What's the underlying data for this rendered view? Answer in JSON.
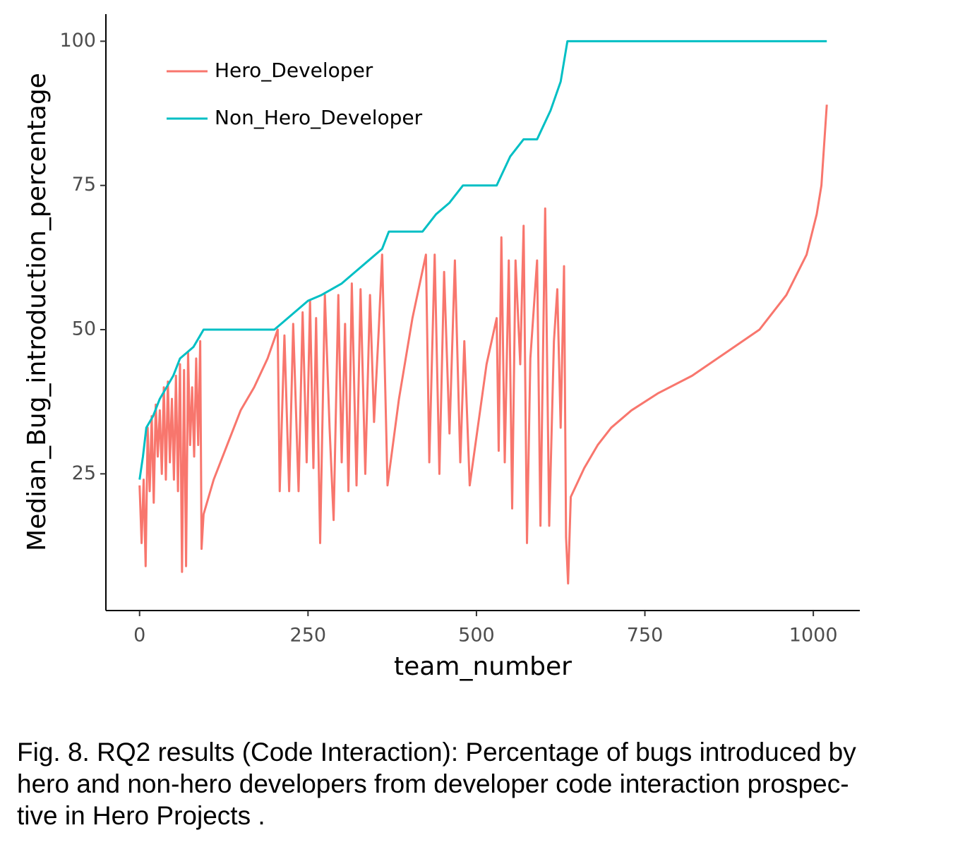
{
  "chart_data": {
    "type": "line",
    "x_label": "team_number",
    "y_label": "Median_Bug_introduction_percentage",
    "xlim": [
      -50,
      1069
    ],
    "ylim": [
      1.3,
      104.7
    ],
    "xticks": [
      0,
      250,
      500,
      750,
      1000
    ],
    "yticks": [
      25,
      50,
      75,
      100
    ],
    "legend": "upper-left",
    "series": [
      {
        "name": "Hero_Developer",
        "color": "#f8766d",
        "x": [
          0,
          3,
          6,
          9,
          12,
          15,
          18,
          21,
          24,
          27,
          30,
          33,
          36,
          39,
          42,
          45,
          48,
          51,
          54,
          57,
          60,
          63,
          66,
          69,
          72,
          75,
          78,
          81,
          84,
          87,
          90,
          92,
          95,
          110,
          130,
          150,
          170,
          190,
          205,
          208,
          215,
          222,
          228,
          236,
          242,
          248,
          253,
          258,
          262,
          268,
          275,
          282,
          288,
          295,
          300,
          305,
          310,
          315,
          322,
          328,
          335,
          342,
          348,
          355,
          360,
          368,
          385,
          405,
          425,
          430,
          438,
          445,
          452,
          460,
          468,
          476,
          482,
          490,
          515,
          530,
          533,
          537,
          542,
          548,
          553,
          558,
          565,
          570,
          575,
          580,
          590,
          595,
          602,
          608,
          615,
          620,
          625,
          630,
          633,
          636,
          640,
          660,
          680,
          700,
          730,
          770,
          820,
          870,
          920,
          960,
          990,
          1005,
          1012,
          1020
        ],
        "values": [
          23,
          13,
          24,
          9,
          33,
          22,
          35,
          20,
          37,
          28,
          36,
          25,
          40,
          24,
          41,
          27,
          38,
          24,
          42,
          22,
          44,
          8,
          43,
          9,
          46,
          30,
          40,
          28,
          45,
          30,
          48,
          12,
          18,
          24,
          30,
          36,
          40,
          45,
          50,
          22,
          49,
          22,
          51,
          22,
          53,
          27,
          55,
          26,
          52,
          13,
          56,
          33,
          17,
          56,
          27,
          51,
          22,
          58,
          23,
          57,
          25,
          56,
          34,
          50,
          63,
          23,
          38,
          52,
          63,
          27,
          63,
          25,
          60,
          32,
          62,
          27,
          48,
          23,
          44,
          52,
          29,
          66,
          27,
          62,
          19,
          62,
          44,
          68,
          13,
          45,
          62,
          16,
          71,
          16,
          48,
          57,
          33,
          61,
          14,
          6,
          21,
          26,
          30,
          33,
          36,
          39,
          42,
          46,
          50,
          56,
          63,
          70,
          75,
          89
        ]
      },
      {
        "name": "Non_Hero_Developer",
        "color": "#00bfc4",
        "x": [
          0,
          5,
          10,
          20,
          30,
          40,
          50,
          60,
          70,
          80,
          90,
          95,
          200,
          210,
          230,
          250,
          270,
          300,
          320,
          340,
          360,
          370,
          420,
          440,
          460,
          480,
          530,
          550,
          570,
          590,
          610,
          625,
          635,
          1020
        ],
        "values": [
          24,
          28,
          33,
          35,
          38,
          40,
          42,
          45,
          46,
          47,
          49,
          50,
          50,
          51,
          53,
          55,
          56,
          58,
          60,
          62,
          64,
          67,
          67,
          70,
          72,
          75,
          75,
          80,
          83,
          83,
          88,
          93,
          100,
          100
        ]
      }
    ]
  },
  "caption": {
    "lines": [
      "Fig. 8. RQ2 results (Code Interaction): Percentage of bugs introduced by",
      "hero and non-hero developers from developer code interaction prospec-",
      "tive in Hero Projects ."
    ]
  }
}
